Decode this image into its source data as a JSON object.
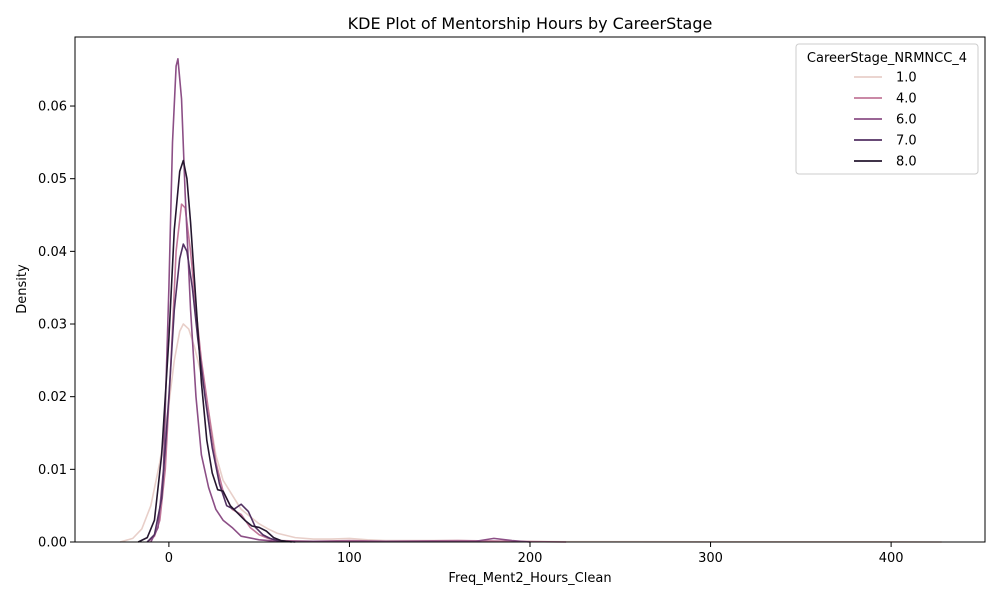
{
  "chart_data": {
    "type": "line",
    "title": "KDE Plot of Mentorship Hours by CareerStage",
    "xlabel": "Freq_Ment2_Hours_Clean",
    "ylabel": "Density",
    "xlim": [
      -52,
      452
    ],
    "ylim": [
      0,
      0.0695
    ],
    "xticks": [
      0,
      100,
      200,
      300,
      400
    ],
    "yticks": [
      0.0,
      0.01,
      0.02,
      0.03,
      0.04,
      0.05,
      0.06
    ],
    "ytick_labels": [
      "0.00",
      "0.01",
      "0.02",
      "0.03",
      "0.04",
      "0.05",
      "0.06"
    ],
    "grid": false,
    "legend": {
      "title": "CareerStage_NRMNCC_4",
      "placement": "top-right"
    },
    "series": [
      {
        "name": "1.0",
        "color": "#e8cfc9",
        "points": [
          [
            -27,
            0
          ],
          [
            -20,
            0.0005
          ],
          [
            -15,
            0.0018
          ],
          [
            -10,
            0.005
          ],
          [
            -5,
            0.011
          ],
          [
            0,
            0.019
          ],
          [
            3,
            0.025
          ],
          [
            6,
            0.029
          ],
          [
            8,
            0.03
          ],
          [
            11,
            0.0293
          ],
          [
            14,
            0.027
          ],
          [
            18,
            0.023
          ],
          [
            22,
            0.018
          ],
          [
            26,
            0.012
          ],
          [
            30,
            0.0085
          ],
          [
            35,
            0.0065
          ],
          [
            40,
            0.0045
          ],
          [
            45,
            0.0035
          ],
          [
            50,
            0.0025
          ],
          [
            55,
            0.0018
          ],
          [
            60,
            0.0012
          ],
          [
            70,
            0.0006
          ],
          [
            80,
            0.0004
          ],
          [
            90,
            0.0004
          ],
          [
            100,
            0.0005
          ],
          [
            110,
            0.0003
          ],
          [
            120,
            0.0002
          ],
          [
            140,
            0.0002
          ],
          [
            160,
            0.0002
          ],
          [
            180,
            0.0001
          ],
          [
            220,
            5e-05
          ],
          [
            300,
            3e-05
          ],
          [
            400,
            2e-05
          ],
          [
            428,
            0
          ]
        ]
      },
      {
        "name": "4.0",
        "color": "#c2789a",
        "points": [
          [
            -12,
            0
          ],
          [
            -8,
            0.0008
          ],
          [
            -5,
            0.003
          ],
          [
            -2,
            0.01
          ],
          [
            1,
            0.024
          ],
          [
            4,
            0.04
          ],
          [
            7,
            0.0465
          ],
          [
            9,
            0.046
          ],
          [
            12,
            0.04
          ],
          [
            15,
            0.032
          ],
          [
            18,
            0.025
          ],
          [
            22,
            0.018
          ],
          [
            26,
            0.011
          ],
          [
            30,
            0.007
          ],
          [
            35,
            0.0045
          ],
          [
            40,
            0.0038
          ],
          [
            45,
            0.002
          ],
          [
            50,
            0.001
          ],
          [
            55,
            0.0005
          ],
          [
            60,
            0.0002
          ],
          [
            80,
            0.0001
          ],
          [
            100,
            0.0002
          ],
          [
            120,
            0.0001
          ],
          [
            160,
            0.0002
          ],
          [
            190,
            0.0001
          ],
          [
            220,
            0
          ]
        ]
      },
      {
        "name": "6.0",
        "color": "#8c4f86",
        "points": [
          [
            -10,
            0
          ],
          [
            -6,
            0.002
          ],
          [
            -3,
            0.01
          ],
          [
            0,
            0.035
          ],
          [
            2,
            0.055
          ],
          [
            4,
            0.0655
          ],
          [
            5,
            0.0665
          ],
          [
            7,
            0.061
          ],
          [
            9,
            0.048
          ],
          [
            12,
            0.032
          ],
          [
            15,
            0.02
          ],
          [
            18,
            0.012
          ],
          [
            22,
            0.0075
          ],
          [
            26,
            0.0045
          ],
          [
            30,
            0.003
          ],
          [
            35,
            0.002
          ],
          [
            40,
            0.0008
          ],
          [
            50,
            0.0003
          ],
          [
            60,
            0.0001
          ],
          [
            100,
            0.0001
          ],
          [
            170,
            0.0001
          ],
          [
            180,
            0.0005
          ],
          [
            190,
            0.0002
          ],
          [
            200,
            0
          ]
        ]
      },
      {
        "name": "7.0",
        "color": "#523162",
        "points": [
          [
            -12,
            0
          ],
          [
            -8,
            0.001
          ],
          [
            -4,
            0.006
          ],
          [
            0,
            0.02
          ],
          [
            3,
            0.032
          ],
          [
            6,
            0.039
          ],
          [
            8,
            0.041
          ],
          [
            10,
            0.04
          ],
          [
            13,
            0.035
          ],
          [
            16,
            0.028
          ],
          [
            20,
            0.02
          ],
          [
            24,
            0.013
          ],
          [
            28,
            0.008
          ],
          [
            32,
            0.005
          ],
          [
            36,
            0.0045
          ],
          [
            40,
            0.0052
          ],
          [
            44,
            0.0042
          ],
          [
            48,
            0.002
          ],
          [
            52,
            0.001
          ],
          [
            56,
            0.0005
          ],
          [
            60,
            0.0002
          ],
          [
            70,
            0
          ]
        ]
      },
      {
        "name": "8.0",
        "color": "#25172f",
        "points": [
          [
            -17,
            0
          ],
          [
            -12,
            0.0006
          ],
          [
            -8,
            0.003
          ],
          [
            -4,
            0.012
          ],
          [
            0,
            0.028
          ],
          [
            3,
            0.043
          ],
          [
            6,
            0.051
          ],
          [
            8,
            0.0525
          ],
          [
            10,
            0.05
          ],
          [
            12,
            0.044
          ],
          [
            15,
            0.033
          ],
          [
            18,
            0.022
          ],
          [
            21,
            0.014
          ],
          [
            24,
            0.0095
          ],
          [
            27,
            0.0072
          ],
          [
            30,
            0.007
          ],
          [
            34,
            0.005
          ],
          [
            38,
            0.004
          ],
          [
            42,
            0.003
          ],
          [
            46,
            0.0022
          ],
          [
            50,
            0.002
          ],
          [
            54,
            0.0015
          ],
          [
            58,
            0.0006
          ],
          [
            62,
            0.0002
          ],
          [
            68,
            0
          ]
        ]
      }
    ]
  }
}
